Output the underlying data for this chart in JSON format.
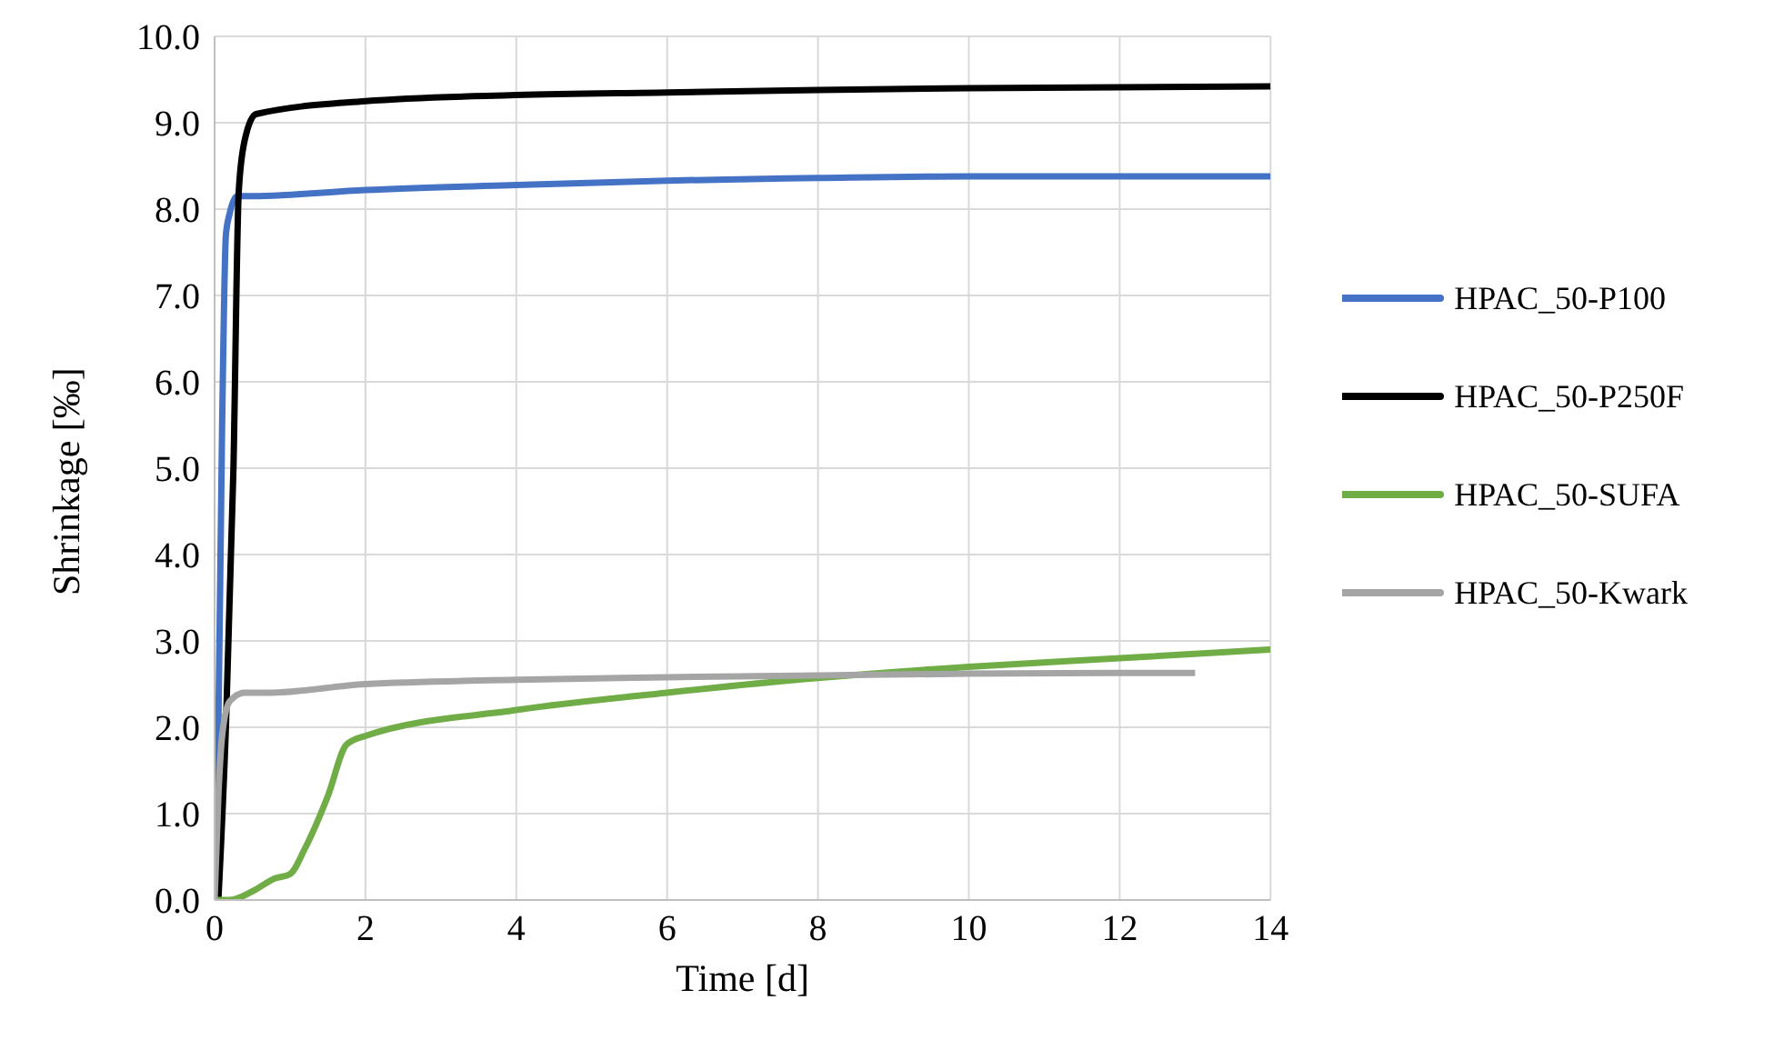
{
  "chart_data": {
    "type": "line",
    "xlabel": "Time [d]",
    "ylabel": "Shrinkage [‰]",
    "xlim": [
      0,
      14
    ],
    "xticks": [
      0,
      2,
      4,
      6,
      8,
      10,
      12,
      14
    ],
    "ylim": [
      0,
      10
    ],
    "yticks": [
      {
        "value": 0,
        "label": "0.0"
      },
      {
        "value": 1,
        "label": "1.0"
      },
      {
        "value": 2,
        "label": "2.0"
      },
      {
        "value": 3,
        "label": "3.0"
      },
      {
        "value": 4,
        "label": "4.0"
      },
      {
        "value": 5,
        "label": "5.0"
      },
      {
        "value": 6,
        "label": "6.0"
      },
      {
        "value": 7,
        "label": "7.0"
      },
      {
        "value": 8,
        "label": "8.0"
      },
      {
        "value": 9,
        "label": "9.0"
      },
      {
        "value": 10,
        "label": "10.0"
      }
    ],
    "grid": true,
    "legend": "right",
    "marker": "none",
    "line_style": "solid",
    "series": [
      {
        "name": "HPAC_50-P100",
        "color": "#4472c4",
        "x": [
          0,
          0.05,
          0.1,
          0.15,
          0.2,
          0.3,
          0.5,
          2,
          4,
          6,
          8,
          10,
          14
        ],
        "values": [
          0,
          2,
          5.5,
          7.7,
          7.95,
          8.15,
          8.15,
          8.22,
          8.28,
          8.33,
          8.36,
          8.38,
          8.38
        ]
      },
      {
        "name": "HPAC_50-P250F",
        "color": "#000000",
        "x": [
          0.05,
          0.15,
          0.25,
          0.32,
          0.4,
          0.55,
          2,
          4,
          6,
          8,
          10,
          14
        ],
        "values": [
          0,
          2,
          5,
          8.2,
          8.8,
          9.1,
          9.25,
          9.32,
          9.35,
          9.38,
          9.4,
          9.42
        ]
      },
      {
        "name": "HPAC_50-SUFA",
        "color": "#70ad47",
        "x": [
          0,
          0.2,
          0.5,
          0.8,
          1,
          1.2,
          1.5,
          1.75,
          2,
          4,
          6,
          8,
          10,
          12,
          14
        ],
        "values": [
          0,
          0,
          0.1,
          0.25,
          0.3,
          0.6,
          1.2,
          1.8,
          1.9,
          2.2,
          2.4,
          2.57,
          2.7,
          2.8,
          2.9
        ]
      },
      {
        "name": "HPAC_50-Kwark",
        "color": "#a5a5a5",
        "x": [
          0,
          0.05,
          0.1,
          0.2,
          0.4,
          0.7,
          2,
          4,
          6,
          8,
          10,
          13
        ],
        "values": [
          0,
          1.2,
          1.9,
          2.3,
          2.4,
          2.4,
          2.5,
          2.55,
          2.58,
          2.6,
          2.62,
          2.63
        ]
      }
    ]
  }
}
